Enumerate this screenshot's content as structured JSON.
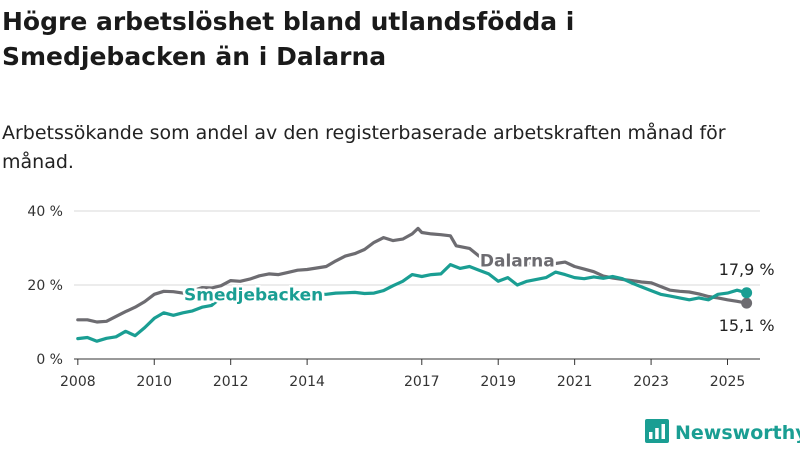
{
  "title": "Högre arbetslöshet bland utlandsfödda i Smedjebacken än i Dalarna",
  "subtitle": "Arbetssökande som andel av den registerbaserade arbetskraften månad för månad.",
  "brand": {
    "name": "Newsworthy",
    "logo_icon": "bar-chart-logo-icon"
  },
  "colors": {
    "smedjebacken": "#1a9e93",
    "dalarna": "#6d6c71",
    "grid": "#d9d9d9",
    "axis": "#333333"
  },
  "chart_data": {
    "type": "line",
    "ylim": [
      0,
      40
    ],
    "xlim": [
      2007.9,
      2025.85
    ],
    "y_ticks": [
      {
        "value": 0,
        "label": "0 %"
      },
      {
        "value": 20,
        "label": "20 %"
      },
      {
        "value": 40,
        "label": "40 %"
      }
    ],
    "x_ticks": [
      {
        "value": 2008,
        "label": "2008"
      },
      {
        "value": 2010,
        "label": "2010"
      },
      {
        "value": 2012,
        "label": "2012"
      },
      {
        "value": 2014,
        "label": "2014"
      },
      {
        "value": 2017,
        "label": "2017"
      },
      {
        "value": 2019,
        "label": "2019"
      },
      {
        "value": 2021,
        "label": "2021"
      },
      {
        "value": 2023,
        "label": "2023"
      },
      {
        "value": 2025,
        "label": "2025"
      }
    ],
    "series": [
      {
        "name": "Dalarna",
        "color": "#6d6c71",
        "end_label": "15,1 %",
        "points": [
          [
            2008.0,
            10.6
          ],
          [
            2008.25,
            10.6
          ],
          [
            2008.5,
            10.0
          ],
          [
            2008.75,
            10.2
          ],
          [
            2009.0,
            11.5
          ],
          [
            2009.25,
            12.8
          ],
          [
            2009.5,
            14.0
          ],
          [
            2009.75,
            15.5
          ],
          [
            2010.0,
            17.5
          ],
          [
            2010.25,
            18.3
          ],
          [
            2010.5,
            18.2
          ],
          [
            2010.75,
            17.8
          ],
          [
            2011.0,
            18.4
          ],
          [
            2011.25,
            19.3
          ],
          [
            2011.5,
            19.2
          ],
          [
            2011.75,
            19.8
          ],
          [
            2012.0,
            21.2
          ],
          [
            2012.25,
            21.0
          ],
          [
            2012.5,
            21.6
          ],
          [
            2012.75,
            22.5
          ],
          [
            2013.0,
            23.0
          ],
          [
            2013.25,
            22.8
          ],
          [
            2013.5,
            23.4
          ],
          [
            2013.75,
            24.0
          ],
          [
            2014.0,
            24.2
          ],
          [
            2014.25,
            24.6
          ],
          [
            2014.5,
            25.0
          ],
          [
            2014.75,
            26.5
          ],
          [
            2015.0,
            27.8
          ],
          [
            2015.25,
            28.5
          ],
          [
            2015.5,
            29.6
          ],
          [
            2015.75,
            31.5
          ],
          [
            2016.0,
            32.8
          ],
          [
            2016.25,
            32.0
          ],
          [
            2016.5,
            32.4
          ],
          [
            2016.75,
            33.8
          ],
          [
            2016.9,
            35.3
          ],
          [
            2017.0,
            34.2
          ],
          [
            2017.25,
            33.8
          ],
          [
            2017.5,
            33.6
          ],
          [
            2017.75,
            33.3
          ],
          [
            2017.9,
            30.6
          ],
          [
            2018.25,
            29.9
          ],
          [
            2018.5,
            27.8
          ],
          [
            2018.75,
            27.3
          ],
          [
            2019.0,
            27.0
          ],
          [
            2019.25,
            26.5
          ],
          [
            2019.5,
            26.2
          ],
          [
            2019.75,
            26.0
          ],
          [
            2020.0,
            25.5
          ],
          [
            2020.25,
            25.9
          ],
          [
            2020.5,
            25.8
          ],
          [
            2020.75,
            26.2
          ],
          [
            2021.0,
            25.0
          ],
          [
            2021.25,
            24.3
          ],
          [
            2021.5,
            23.6
          ],
          [
            2021.75,
            22.4
          ],
          [
            2022.0,
            21.9
          ],
          [
            2022.25,
            21.5
          ],
          [
            2022.5,
            21.2
          ],
          [
            2022.75,
            20.8
          ],
          [
            2023.0,
            20.6
          ],
          [
            2023.25,
            19.6
          ],
          [
            2023.5,
            18.6
          ],
          [
            2023.75,
            18.3
          ],
          [
            2024.0,
            18.1
          ],
          [
            2024.25,
            17.6
          ],
          [
            2024.5,
            16.9
          ],
          [
            2024.75,
            16.5
          ],
          [
            2025.0,
            16.0
          ],
          [
            2025.25,
            15.6
          ],
          [
            2025.5,
            15.1
          ]
        ]
      },
      {
        "name": "Smedjebacken",
        "color": "#1a9e93",
        "end_label": "17,9 %",
        "points": [
          [
            2008.0,
            5.5
          ],
          [
            2008.25,
            5.8
          ],
          [
            2008.5,
            4.8
          ],
          [
            2008.75,
            5.6
          ],
          [
            2009.0,
            6.0
          ],
          [
            2009.25,
            7.5
          ],
          [
            2009.5,
            6.3
          ],
          [
            2009.75,
            8.5
          ],
          [
            2010.0,
            11.0
          ],
          [
            2010.25,
            12.5
          ],
          [
            2010.5,
            11.8
          ],
          [
            2010.75,
            12.5
          ],
          [
            2011.0,
            13.0
          ],
          [
            2011.25,
            14.0
          ],
          [
            2011.5,
            14.5
          ],
          [
            2011.75,
            16.6
          ],
          [
            2012.0,
            17.5
          ],
          [
            2012.25,
            17.0
          ],
          [
            2012.5,
            16.8
          ],
          [
            2012.75,
            16.5
          ],
          [
            2013.0,
            17.5
          ],
          [
            2013.25,
            17.0
          ],
          [
            2013.5,
            17.3
          ],
          [
            2013.75,
            18.0
          ],
          [
            2014.0,
            17.6
          ],
          [
            2014.25,
            17.5
          ],
          [
            2014.5,
            17.5
          ],
          [
            2014.75,
            17.8
          ],
          [
            2015.0,
            17.9
          ],
          [
            2015.25,
            18.0
          ],
          [
            2015.5,
            17.7
          ],
          [
            2015.75,
            17.8
          ],
          [
            2016.0,
            18.5
          ],
          [
            2016.25,
            19.8
          ],
          [
            2016.5,
            21.0
          ],
          [
            2016.75,
            22.8
          ],
          [
            2017.0,
            22.3
          ],
          [
            2017.25,
            22.8
          ],
          [
            2017.5,
            23.0
          ],
          [
            2017.75,
            25.5
          ],
          [
            2018.0,
            24.5
          ],
          [
            2018.25,
            25.0
          ],
          [
            2018.5,
            24.0
          ],
          [
            2018.75,
            23.0
          ],
          [
            2019.0,
            21.0
          ],
          [
            2019.25,
            22.0
          ],
          [
            2019.5,
            20.0
          ],
          [
            2019.75,
            21.0
          ],
          [
            2020.0,
            21.5
          ],
          [
            2020.25,
            22.0
          ],
          [
            2020.5,
            23.5
          ],
          [
            2020.75,
            22.8
          ],
          [
            2021.0,
            22.0
          ],
          [
            2021.25,
            21.7
          ],
          [
            2021.5,
            22.2
          ],
          [
            2021.75,
            21.8
          ],
          [
            2022.0,
            22.3
          ],
          [
            2022.25,
            21.7
          ],
          [
            2022.5,
            20.5
          ],
          [
            2022.75,
            19.5
          ],
          [
            2023.0,
            18.5
          ],
          [
            2023.25,
            17.5
          ],
          [
            2023.5,
            17.0
          ],
          [
            2023.75,
            16.5
          ],
          [
            2024.0,
            16.0
          ],
          [
            2024.25,
            16.5
          ],
          [
            2024.5,
            16.0
          ],
          [
            2024.75,
            17.5
          ],
          [
            2025.0,
            17.8
          ],
          [
            2025.25,
            18.6
          ],
          [
            2025.5,
            17.9
          ]
        ]
      }
    ],
    "annotations": [
      {
        "series": "Smedjebacken",
        "text": "Smedjebacken",
        "x": 2012.6,
        "y": 17.5
      },
      {
        "series": "Dalarna",
        "text": "Dalarna",
        "x": 2019.5,
        "y": 26.6
      }
    ]
  }
}
